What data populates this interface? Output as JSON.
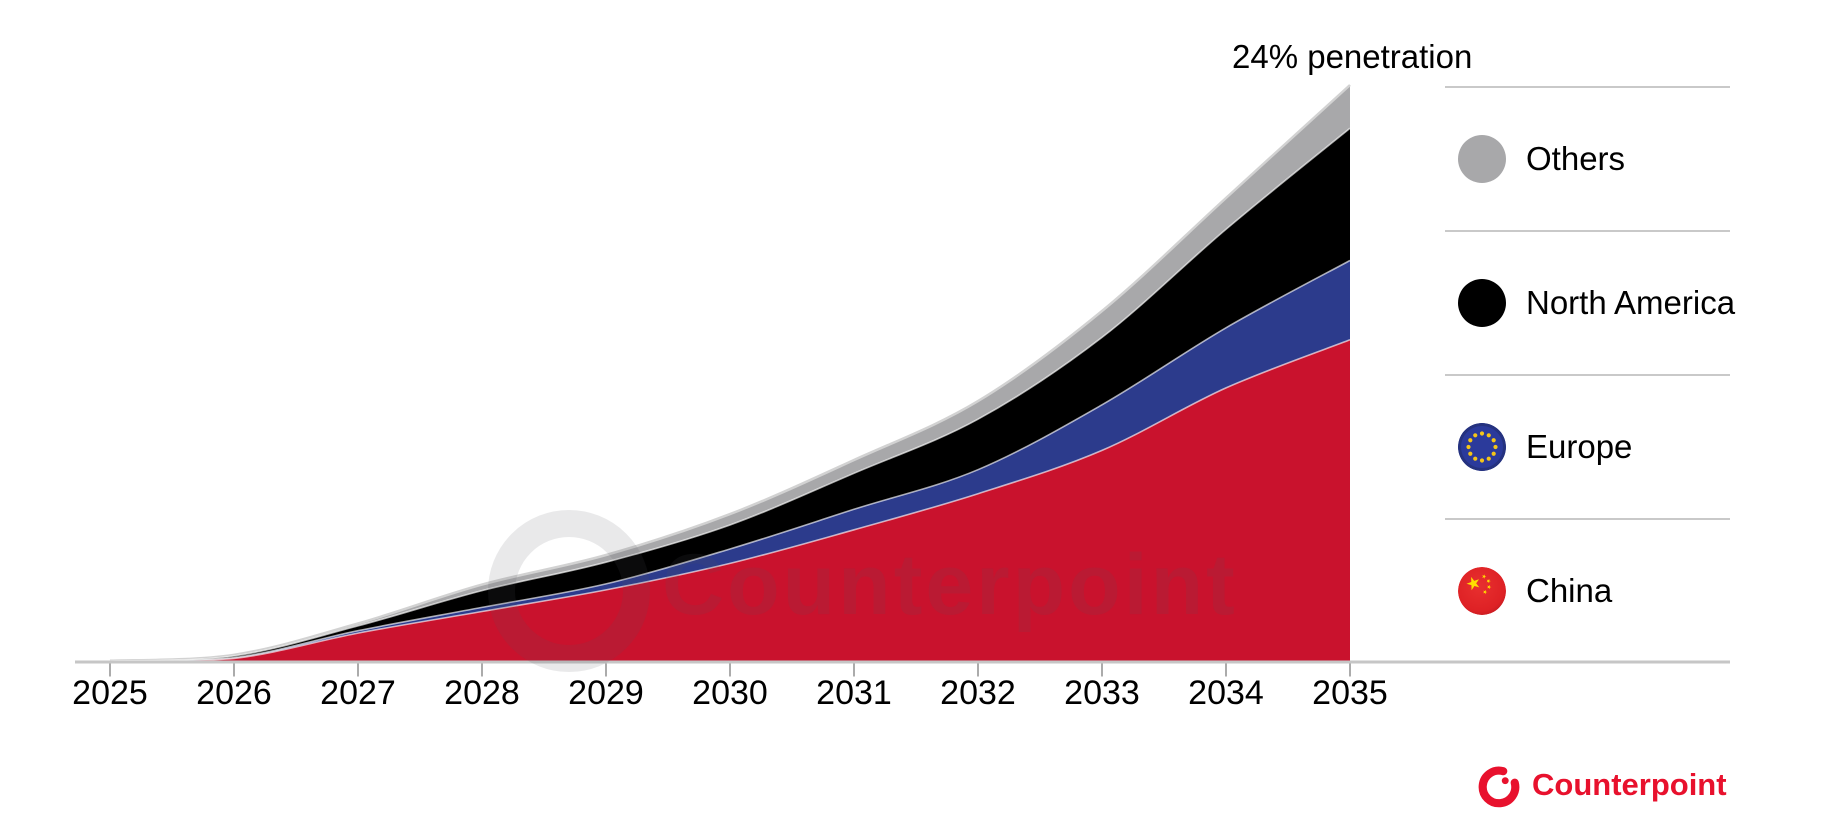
{
  "annotation": {
    "label": "24% penetration"
  },
  "chart_data": {
    "type": "area",
    "stacked": true,
    "title": "",
    "xlabel": "",
    "ylabel": "",
    "y_axis_visible": false,
    "grid": false,
    "legend_position": "right",
    "categories": [
      "2025",
      "2026",
      "2027",
      "2028",
      "2029",
      "2030",
      "2031",
      "2032",
      "2033",
      "2034",
      "2035"
    ],
    "series": [
      {
        "name": "China",
        "color": "#C9122D",
        "values": [
          0.02,
          0.15,
          1.2,
          2.1,
          3.0,
          4.1,
          5.5,
          7.0,
          8.8,
          11.4,
          13.4
        ]
      },
      {
        "name": "Europe",
        "color": "#2C3B8C",
        "values": [
          0.01,
          0.03,
          0.1,
          0.17,
          0.25,
          0.6,
          0.85,
          1.0,
          1.9,
          2.5,
          3.3
        ]
      },
      {
        "name": "North America",
        "color": "#000000",
        "values": [
          0.01,
          0.07,
          0.2,
          0.7,
          0.9,
          1.0,
          1.5,
          2.1,
          2.8,
          4.1,
          5.5
        ]
      },
      {
        "name": "Others",
        "color": "#A8A8AA",
        "values": [
          0.01,
          0.05,
          0.1,
          0.25,
          0.3,
          0.45,
          0.55,
          0.75,
          1.1,
          1.3,
          1.8
        ]
      }
    ],
    "annotations": [
      {
        "text": "24% penetration",
        "x": "2035",
        "meaning": "total stack at 2035 equals 24% penetration"
      }
    ],
    "ylim": [
      0,
      24
    ],
    "y_unit": "percent penetration"
  },
  "legend": {
    "items": [
      {
        "label": "Others",
        "icon": "gray-circle",
        "color": "#A8A8AA"
      },
      {
        "label": "North America",
        "icon": "black-circle",
        "color": "#000000"
      },
      {
        "label": "Europe",
        "icon": "eu-flag",
        "color": "#2B3A9B",
        "star_color": "#F5C518"
      },
      {
        "label": "China",
        "icon": "china-flag",
        "color": "#DF2127",
        "star_color": "#FFDE00"
      }
    ]
  },
  "watermark": {
    "text": "Counterpoint"
  },
  "brand": {
    "text": "Counterpoint",
    "color": "#E8112D"
  },
  "axis": {
    "line_color": "#C6C6C6",
    "tick_color": "#ABABAB",
    "label_color": "#000000"
  }
}
